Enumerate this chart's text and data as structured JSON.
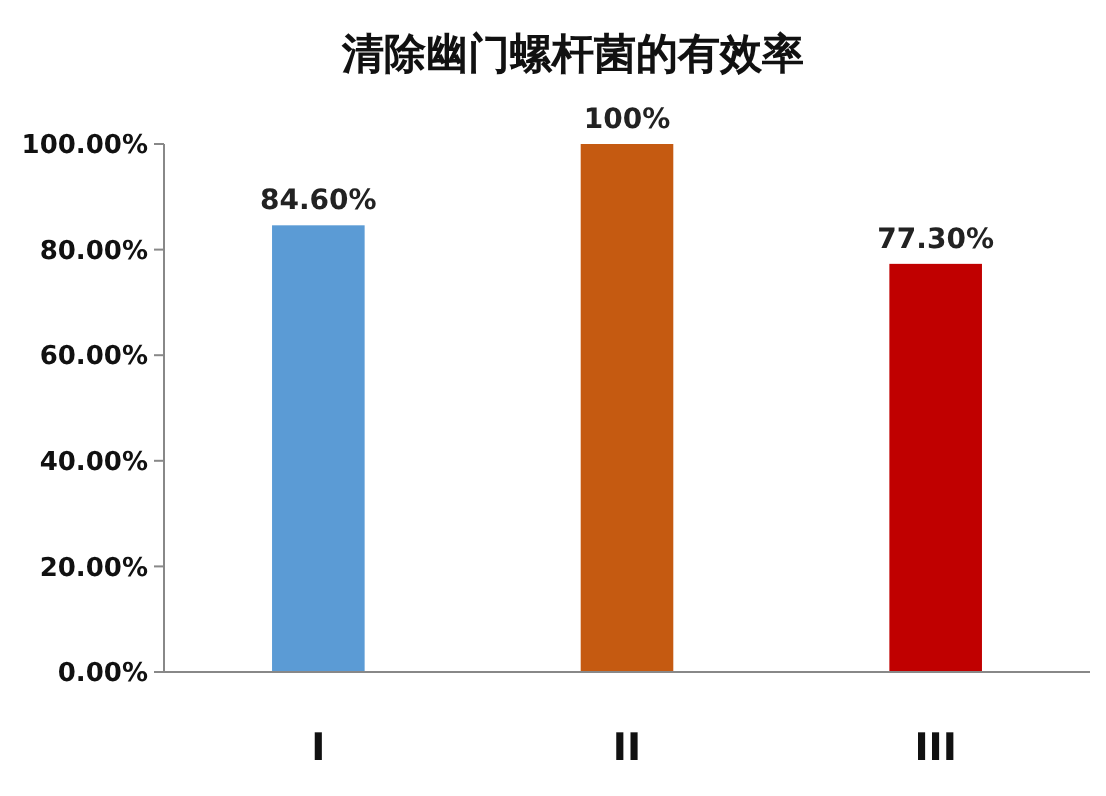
{
  "chart_data": {
    "type": "bar",
    "title": "清除幽门螺杆菌的有效率",
    "categories": [
      "I",
      "II",
      "III"
    ],
    "values": [
      84.6,
      100,
      77.3
    ],
    "colors": [
      "#5b9bd5",
      "#c55a11",
      "#c00000"
    ],
    "value_labels": [
      "84.60%",
      "100%",
      "77.30%"
    ],
    "ylim": [
      0,
      100
    ],
    "yticks": [
      {
        "value": 0,
        "label": "0.00%"
      },
      {
        "value": 20,
        "label": "20.00%"
      },
      {
        "value": 40,
        "label": "40.00%"
      },
      {
        "value": 60,
        "label": "60.00%"
      },
      {
        "value": 80,
        "label": "80.00%"
      },
      {
        "value": 100,
        "label": "100.00%"
      }
    ],
    "grid": false
  }
}
